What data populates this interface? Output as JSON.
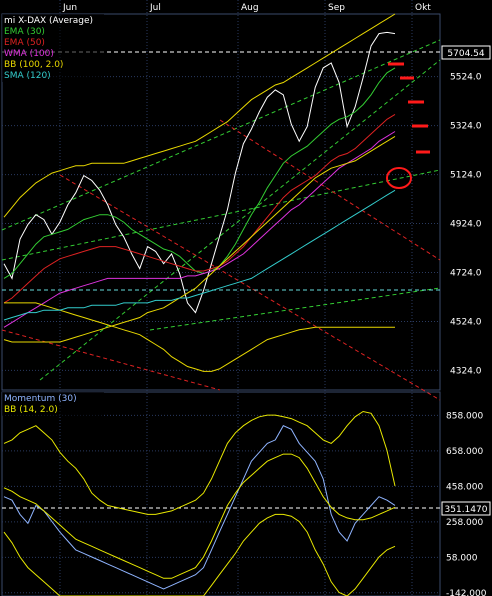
{
  "months": [
    "Jun",
    "Jul",
    "Aug",
    "Sep",
    "Okt"
  ],
  "main_panel": {
    "legend": [
      {
        "text": "mi X-DAX (Average)",
        "color": "#ffffff"
      },
      {
        "text": "EMA (30)",
        "color": "#33cc33"
      },
      {
        "text": "EMA (50)",
        "color": "#dd2222"
      },
      {
        "text": "WMA (100)",
        "color": "#dd33dd"
      },
      {
        "text": "BB (100, 2.0)",
        "color": "#e8d800"
      },
      {
        "text": "SMA (120)",
        "color": "#33cccc"
      }
    ],
    "y_ticks": [
      "5524.0",
      "5324.0",
      "5124.0",
      "4924.0",
      "4724.0",
      "4524.0",
      "4324.0"
    ],
    "last_value": "5704.54"
  },
  "momentum_panel": {
    "legend": [
      {
        "text": "Momentum (30)",
        "color": "#8fb4ff"
      },
      {
        "text": "BB (14, 2.0)",
        "color": "#e8e800"
      }
    ],
    "y_ticks": [
      "858.000",
      "658.000",
      "458.000",
      "258.000",
      "58.000",
      "-142.000"
    ],
    "last_value": "351.1470"
  },
  "chart_data": [
    {
      "type": "line",
      "title": "mi X-DAX (Average)",
      "ylim": [
        4244,
        5780
      ],
      "y_ticks": [
        4324,
        4524,
        4724,
        4924,
        5124,
        5324,
        5524
      ],
      "x_labels": [
        "Jun",
        "Jul",
        "Aug",
        "Sep",
        "Okt"
      ],
      "series": [
        {
          "name": "mi X-DAX (Average)",
          "color": "#ffffff",
          "values": [
            4760,
            4700,
            4860,
            4920,
            4960,
            4940,
            4880,
            4930,
            5000,
            5050,
            5120,
            5100,
            5060,
            5000,
            4920,
            4870,
            4800,
            4740,
            4830,
            4810,
            4760,
            4800,
            4720,
            4600,
            4560,
            4650,
            4760,
            4870,
            4980,
            5130,
            5250,
            5310,
            5380,
            5440,
            5470,
            5450,
            5330,
            5260,
            5320,
            5480,
            5560,
            5580,
            5500,
            5320,
            5400,
            5520,
            5650,
            5700,
            5705,
            5700
          ]
        },
        {
          "name": "EMA (30)",
          "color": "#33cc33",
          "values": [
            4700,
            4720,
            4760,
            4800,
            4840,
            4870,
            4880,
            4890,
            4900,
            4920,
            4940,
            4950,
            4960,
            4960,
            4950,
            4930,
            4900,
            4880,
            4860,
            4840,
            4820,
            4810,
            4790,
            4760,
            4730,
            4720,
            4730,
            4750,
            4790,
            4840,
            4900,
            4960,
            5010,
            5070,
            5120,
            5170,
            5200,
            5220,
            5240,
            5270,
            5300,
            5330,
            5350,
            5360,
            5380,
            5410,
            5450,
            5500,
            5540,
            5560
          ]
        },
        {
          "name": "EMA (50)",
          "color": "#dd2222",
          "values": [
            4600,
            4620,
            4650,
            4680,
            4710,
            4740,
            4760,
            4780,
            4790,
            4800,
            4810,
            4820,
            4830,
            4830,
            4830,
            4820,
            4810,
            4800,
            4790,
            4780,
            4770,
            4760,
            4750,
            4740,
            4730,
            4730,
            4740,
            4750,
            4770,
            4800,
            4830,
            4870,
            4910,
            4950,
            4990,
            5030,
            5060,
            5080,
            5100,
            5120,
            5150,
            5180,
            5200,
            5210,
            5230,
            5260,
            5290,
            5320,
            5350,
            5370
          ]
        },
        {
          "name": "WMA (100)",
          "color": "#dd33dd",
          "values": [
            4500,
            4520,
            4540,
            4560,
            4580,
            4600,
            4620,
            4640,
            4650,
            4660,
            4670,
            4680,
            4690,
            4700,
            4700,
            4700,
            4700,
            4700,
            4700,
            4700,
            4700,
            4700,
            4700,
            4710,
            4710,
            4720,
            4730,
            4740,
            4760,
            4780,
            4800,
            4830,
            4860,
            4890,
            4920,
            4950,
            4980,
            5000,
            5030,
            5060,
            5090,
            5120,
            5150,
            5170,
            5190,
            5210,
            5230,
            5260,
            5280,
            5300
          ]
        },
        {
          "name": "BB (100, 2.0)",
          "color": "#e8d800",
          "values": [
            4950,
            4990,
            5030,
            5060,
            5090,
            5110,
            5130,
            5140,
            5150,
            5160,
            5160,
            5170,
            5170,
            5170,
            5170,
            5170,
            5180,
            5190,
            5200,
            5210,
            5220,
            5230,
            5240,
            5250,
            5260,
            5280,
            5300,
            5320,
            5340,
            5370,
            5400,
            5430,
            5450,
            5470,
            5490,
            5500,
            5520,
            5540,
            5560,
            5580,
            5600,
            5620,
            5640,
            5660,
            5680,
            5700,
            5720,
            5740,
            5760,
            5780
          ]
        },
        {
          "name": "BB (100, 2.0)",
          "color": "#e8d800",
          "values": [
            4450,
            4440,
            4440,
            4440,
            4440,
            4440,
            4440,
            4440,
            4450,
            4460,
            4470,
            4480,
            4490,
            4500,
            4510,
            4520,
            4530,
            4540,
            4560,
            4570,
            4580,
            4600,
            4620,
            4640,
            4660,
            4690,
            4720,
            4750,
            4780,
            4810,
            4840,
            4870,
            4900,
            4930,
            4960,
            4990,
            5020,
            5050,
            5080,
            5110,
            5130,
            5150,
            5160,
            5170,
            5180,
            5200,
            5220,
            5240,
            5260,
            5280
          ]
        },
        {
          "name": "BB (100, 2.0)",
          "color": "#e8d800",
          "values": [
            4600,
            4600,
            4600,
            4600,
            4600,
            4590,
            4580,
            4570,
            4560,
            4550,
            4540,
            4530,
            4520,
            4510,
            4500,
            4490,
            4480,
            4470,
            4450,
            4430,
            4410,
            4380,
            4360,
            4340,
            4330,
            4320,
            4320,
            4330,
            4350,
            4370,
            4390,
            4410,
            4430,
            4450,
            4460,
            4470,
            4480,
            4490,
            4495,
            4500,
            4500,
            4500,
            4500,
            4500,
            4500,
            4500,
            4500,
            4500,
            4500,
            4500
          ]
        },
        {
          "name": "SMA (120)",
          "color": "#33cccc",
          "values": [
            4530,
            4540,
            4550,
            4560,
            4560,
            4570,
            4570,
            4570,
            4580,
            4580,
            4580,
            4590,
            4590,
            4590,
            4590,
            4600,
            4600,
            4600,
            4600,
            4610,
            4610,
            4610,
            4620,
            4620,
            4630,
            4640,
            4650,
            4660,
            4670,
            4680,
            4690,
            4700,
            4720,
            4740,
            4760,
            4780,
            4800,
            4820,
            4840,
            4860,
            4880,
            4900,
            4920,
            4940,
            4960,
            4980,
            5000,
            5020,
            5040,
            5060
          ]
        }
      ]
    },
    {
      "type": "line",
      "title": "Momentum (30)",
      "ylim": [
        -160,
        990
      ],
      "y_ticks": [
        -142,
        58,
        258,
        458,
        658,
        858
      ],
      "series": [
        {
          "name": "Momentum (30)",
          "color": "#8fb4ff",
          "values": [
            400,
            380,
            300,
            250,
            350,
            320,
            260,
            200,
            150,
            100,
            80,
            60,
            40,
            20,
            0,
            -20,
            -40,
            -60,
            -80,
            -100,
            -120,
            -100,
            -80,
            -60,
            -40,
            0,
            100,
            200,
            300,
            400,
            500,
            600,
            650,
            700,
            720,
            800,
            780,
            700,
            650,
            600,
            500,
            300,
            200,
            150,
            250,
            300,
            350,
            400,
            380,
            351
          ]
        },
        {
          "name": "BB (14, 2.0)",
          "color": "#e8e800",
          "values": [
            700,
            720,
            760,
            780,
            800,
            760,
            720,
            650,
            600,
            560,
            500,
            420,
            380,
            350,
            340,
            330,
            320,
            310,
            300,
            300,
            310,
            320,
            340,
            360,
            380,
            420,
            500,
            600,
            700,
            760,
            800,
            830,
            850,
            860,
            860,
            850,
            840,
            820,
            800,
            760,
            720,
            700,
            740,
            800,
            850,
            880,
            870,
            800,
            660,
            460
          ]
        },
        {
          "name": "BB (14, 2.0)",
          "color": "#e8e800",
          "values": [
            450,
            430,
            400,
            380,
            360,
            320,
            280,
            240,
            200,
            160,
            140,
            120,
            100,
            80,
            60,
            40,
            20,
            0,
            -20,
            -40,
            -60,
            -60,
            -40,
            -20,
            0,
            60,
            150,
            250,
            350,
            420,
            480,
            520,
            560,
            600,
            620,
            640,
            640,
            620,
            560,
            480,
            400,
            340,
            300,
            280,
            270,
            270,
            280,
            300,
            320,
            340
          ]
        },
        {
          "name": "BB (14, 2.0)",
          "color": "#e8e800",
          "values": [
            200,
            140,
            60,
            0,
            -40,
            -80,
            -120,
            -160,
            -160,
            -160,
            -160,
            -160,
            -160,
            -160,
            -160,
            -160,
            -160,
            -160,
            -160,
            -160,
            -160,
            -160,
            -160,
            -160,
            -160,
            -160,
            -100,
            -40,
            20,
            80,
            150,
            200,
            250,
            280,
            300,
            300,
            290,
            260,
            200,
            100,
            20,
            -80,
            -140,
            -160,
            -120,
            -60,
            0,
            60,
            100,
            120
          ]
        }
      ]
    }
  ]
}
